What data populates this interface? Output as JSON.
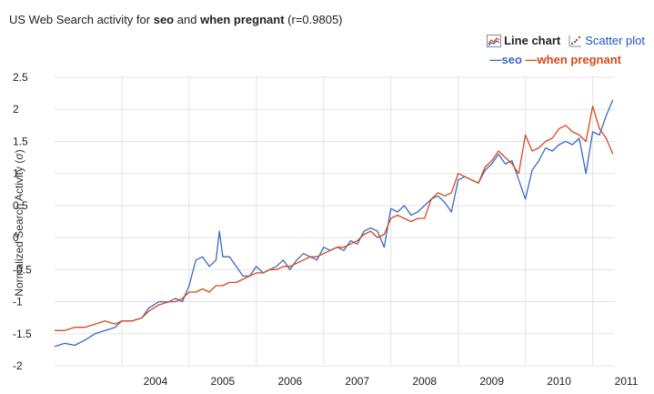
{
  "header": {
    "title_prefix": "US Web Search activity for",
    "term1": "seo",
    "and_word": "and",
    "term2": "when pregnant",
    "correlation": "(r=0.9805)"
  },
  "controls": {
    "line_chart_label": "Line chart",
    "scatter_plot_label": "Scatter plot"
  },
  "colors": {
    "seo": "#3b69c4",
    "when_pregnant": "#d44a1c",
    "grid": "#e3e3e3",
    "axis_text": "#222222",
    "link": "#1a55c4"
  },
  "chart_data": {
    "type": "line",
    "ylabel": "Normalized Search Activity (σ)",
    "xlabel": "",
    "xlim": [
      2003.0,
      2011.33
    ],
    "ylim": [
      -2.0,
      2.5
    ],
    "y_ticks": [
      "2.5",
      "2",
      "1.5",
      "1",
      "0.5",
      "0",
      "-0.5",
      "-1",
      "-1.5",
      "-2"
    ],
    "x_ticks": [
      "2004",
      "2005",
      "2006",
      "2007",
      "2008",
      "2009",
      "2010",
      "2011"
    ],
    "grid": true,
    "legend_position": "top-right",
    "series": [
      {
        "name": "seo",
        "color": "#3b69c4",
        "points": [
          [
            2003.0,
            -1.7
          ],
          [
            2003.15,
            -1.65
          ],
          [
            2003.3,
            -1.68
          ],
          [
            2003.45,
            -1.6
          ],
          [
            2003.6,
            -1.5
          ],
          [
            2003.75,
            -1.45
          ],
          [
            2003.9,
            -1.4
          ],
          [
            2004.0,
            -1.3
          ],
          [
            2004.15,
            -1.3
          ],
          [
            2004.3,
            -1.25
          ],
          [
            2004.4,
            -1.1
          ],
          [
            2004.55,
            -1.0
          ],
          [
            2004.7,
            -1.0
          ],
          [
            2004.8,
            -0.95
          ],
          [
            2004.9,
            -1.0
          ],
          [
            2005.0,
            -0.75
          ],
          [
            2005.1,
            -0.35
          ],
          [
            2005.2,
            -0.3
          ],
          [
            2005.3,
            -0.45
          ],
          [
            2005.4,
            -0.35
          ],
          [
            2005.45,
            0.1
          ],
          [
            2005.5,
            -0.3
          ],
          [
            2005.6,
            -0.3
          ],
          [
            2005.7,
            -0.45
          ],
          [
            2005.8,
            -0.6
          ],
          [
            2005.9,
            -0.6
          ],
          [
            2006.0,
            -0.45
          ],
          [
            2006.1,
            -0.55
          ],
          [
            2006.2,
            -0.5
          ],
          [
            2006.3,
            -0.45
          ],
          [
            2006.4,
            -0.35
          ],
          [
            2006.5,
            -0.5
          ],
          [
            2006.6,
            -0.35
          ],
          [
            2006.7,
            -0.25
          ],
          [
            2006.8,
            -0.3
          ],
          [
            2006.9,
            -0.35
          ],
          [
            2007.0,
            -0.15
          ],
          [
            2007.1,
            -0.2
          ],
          [
            2007.2,
            -0.15
          ],
          [
            2007.3,
            -0.2
          ],
          [
            2007.4,
            -0.05
          ],
          [
            2007.5,
            -0.1
          ],
          [
            2007.6,
            0.1
          ],
          [
            2007.7,
            0.15
          ],
          [
            2007.8,
            0.1
          ],
          [
            2007.9,
            -0.15
          ],
          [
            2008.0,
            0.45
          ],
          [
            2008.1,
            0.4
          ],
          [
            2008.2,
            0.5
          ],
          [
            2008.3,
            0.35
          ],
          [
            2008.4,
            0.4
          ],
          [
            2008.5,
            0.5
          ],
          [
            2008.6,
            0.6
          ],
          [
            2008.7,
            0.65
          ],
          [
            2008.8,
            0.55
          ],
          [
            2008.9,
            0.4
          ],
          [
            2009.0,
            0.9
          ],
          [
            2009.1,
            0.95
          ],
          [
            2009.2,
            0.9
          ],
          [
            2009.3,
            0.85
          ],
          [
            2009.4,
            1.05
          ],
          [
            2009.5,
            1.15
          ],
          [
            2009.6,
            1.3
          ],
          [
            2009.7,
            1.15
          ],
          [
            2009.8,
            1.2
          ],
          [
            2009.9,
            0.9
          ],
          [
            2010.0,
            0.6
          ],
          [
            2010.1,
            1.05
          ],
          [
            2010.2,
            1.2
          ],
          [
            2010.3,
            1.4
          ],
          [
            2010.4,
            1.35
          ],
          [
            2010.5,
            1.45
          ],
          [
            2010.6,
            1.5
          ],
          [
            2010.7,
            1.45
          ],
          [
            2010.8,
            1.55
          ],
          [
            2010.9,
            1.0
          ],
          [
            2011.0,
            1.65
          ],
          [
            2011.1,
            1.6
          ],
          [
            2011.2,
            1.9
          ],
          [
            2011.3,
            2.15
          ]
        ]
      },
      {
        "name": "when pregnant",
        "color": "#d44a1c",
        "points": [
          [
            2003.0,
            -1.45
          ],
          [
            2003.15,
            -1.45
          ],
          [
            2003.3,
            -1.4
          ],
          [
            2003.45,
            -1.4
          ],
          [
            2003.6,
            -1.35
          ],
          [
            2003.75,
            -1.3
          ],
          [
            2003.9,
            -1.35
          ],
          [
            2004.0,
            -1.3
          ],
          [
            2004.15,
            -1.3
          ],
          [
            2004.3,
            -1.25
          ],
          [
            2004.4,
            -1.15
          ],
          [
            2004.55,
            -1.05
          ],
          [
            2004.7,
            -1.0
          ],
          [
            2004.8,
            -1.0
          ],
          [
            2004.9,
            -0.95
          ],
          [
            2005.0,
            -0.85
          ],
          [
            2005.1,
            -0.85
          ],
          [
            2005.2,
            -0.8
          ],
          [
            2005.3,
            -0.85
          ],
          [
            2005.4,
            -0.75
          ],
          [
            2005.5,
            -0.75
          ],
          [
            2005.6,
            -0.7
          ],
          [
            2005.7,
            -0.7
          ],
          [
            2005.8,
            -0.65
          ],
          [
            2005.9,
            -0.6
          ],
          [
            2006.0,
            -0.55
          ],
          [
            2006.1,
            -0.55
          ],
          [
            2006.2,
            -0.5
          ],
          [
            2006.3,
            -0.5
          ],
          [
            2006.4,
            -0.45
          ],
          [
            2006.5,
            -0.45
          ],
          [
            2006.6,
            -0.4
          ],
          [
            2006.7,
            -0.35
          ],
          [
            2006.8,
            -0.3
          ],
          [
            2006.9,
            -0.3
          ],
          [
            2007.0,
            -0.25
          ],
          [
            2007.1,
            -0.2
          ],
          [
            2007.2,
            -0.15
          ],
          [
            2007.3,
            -0.15
          ],
          [
            2007.4,
            -0.1
          ],
          [
            2007.5,
            -0.05
          ],
          [
            2007.6,
            0.05
          ],
          [
            2007.7,
            0.1
          ],
          [
            2007.8,
            0.0
          ],
          [
            2007.9,
            0.05
          ],
          [
            2008.0,
            0.3
          ],
          [
            2008.1,
            0.35
          ],
          [
            2008.2,
            0.3
          ],
          [
            2008.3,
            0.25
          ],
          [
            2008.4,
            0.3
          ],
          [
            2008.5,
            0.3
          ],
          [
            2008.6,
            0.6
          ],
          [
            2008.7,
            0.7
          ],
          [
            2008.8,
            0.65
          ],
          [
            2008.9,
            0.7
          ],
          [
            2009.0,
            1.0
          ],
          [
            2009.1,
            0.95
          ],
          [
            2009.2,
            0.9
          ],
          [
            2009.3,
            0.85
          ],
          [
            2009.4,
            1.1
          ],
          [
            2009.5,
            1.2
          ],
          [
            2009.6,
            1.35
          ],
          [
            2009.7,
            1.25
          ],
          [
            2009.8,
            1.15
          ],
          [
            2009.9,
            1.0
          ],
          [
            2010.0,
            1.6
          ],
          [
            2010.1,
            1.35
          ],
          [
            2010.2,
            1.4
          ],
          [
            2010.3,
            1.5
          ],
          [
            2010.4,
            1.55
          ],
          [
            2010.5,
            1.7
          ],
          [
            2010.6,
            1.75
          ],
          [
            2010.7,
            1.65
          ],
          [
            2010.8,
            1.6
          ],
          [
            2010.9,
            1.5
          ],
          [
            2011.0,
            2.05
          ],
          [
            2011.1,
            1.7
          ],
          [
            2011.2,
            1.55
          ],
          [
            2011.3,
            1.3
          ]
        ]
      }
    ]
  }
}
